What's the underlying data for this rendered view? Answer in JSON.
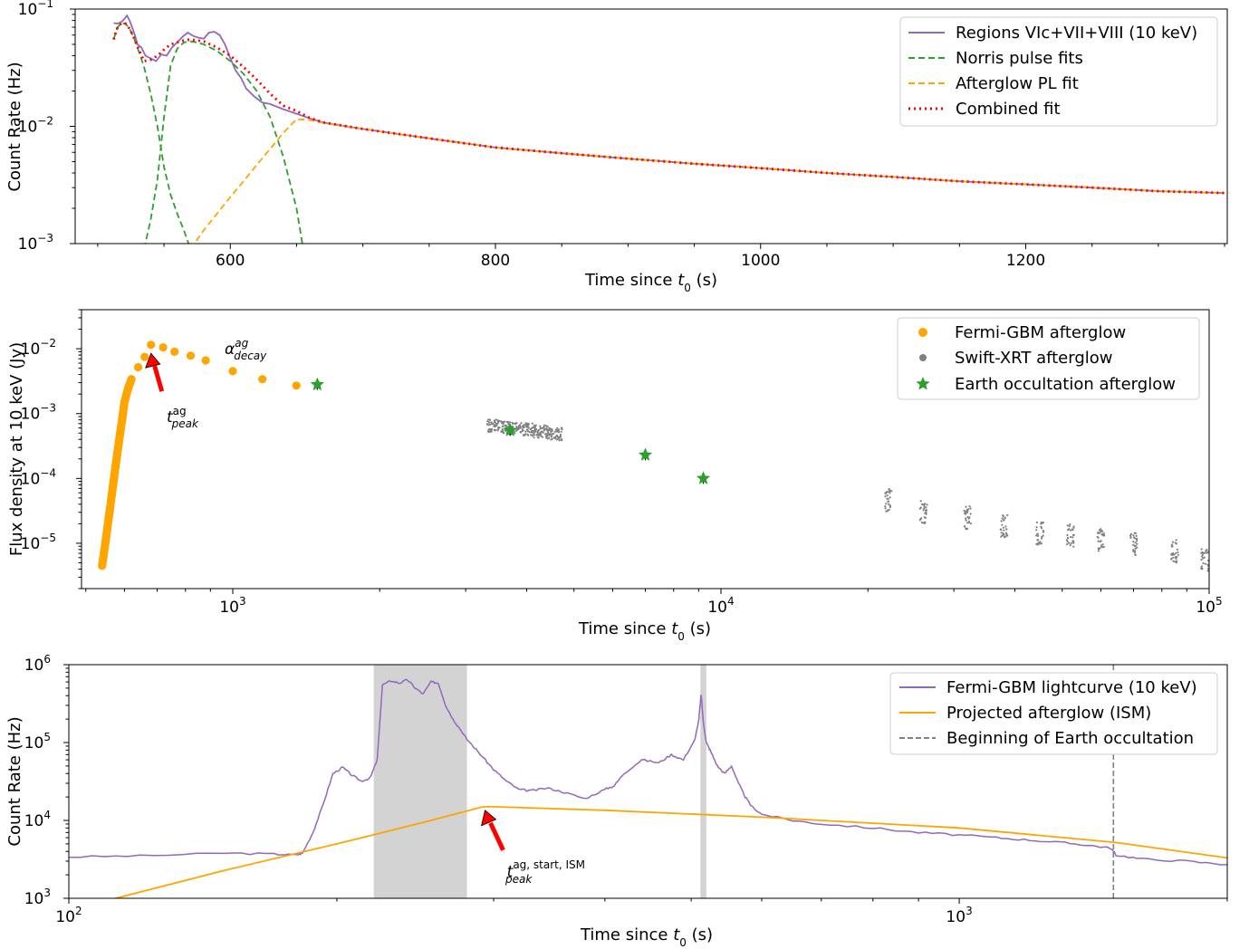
{
  "chart_data": [
    {
      "type": "line",
      "panel": "top",
      "xlabel": "Time since t0 (s)",
      "xlabel_main": "Time since ",
      "xlabel_var": "t",
      "xlabel_sub": "0",
      "xlabel_unit": " (s)",
      "ylabel": "Count Rate (Hz)",
      "xscale": "linear",
      "yscale": "log",
      "xlim": [
        483,
        1352
      ],
      "ylim": [
        0.001,
        0.1
      ],
      "xticks": [
        600,
        800,
        1000,
        1200
      ],
      "xtick_labels": [
        "600",
        "800",
        "1000",
        "1200"
      ],
      "ytick_labels": [
        {
          "base": "10",
          "exp": "−3"
        },
        {
          "base": "10",
          "exp": "−2"
        },
        {
          "base": "10",
          "exp": "−1"
        }
      ],
      "legend_position": "top-right",
      "legend": [
        "Regions VIc+VII+VIII (10 keV)",
        "Norris pulse fits",
        "Afterglow PL fit",
        "Combined fit"
      ],
      "colors": {
        "data": "#9467bd",
        "norris": "#2ca02c",
        "afterglow": "#ffa500",
        "combined": "#ff0000"
      },
      "series": [
        {
          "name": "Regions VIc+VII+VIII (10 keV)",
          "x": [
            512,
            515,
            518,
            520,
            522,
            524,
            526,
            528,
            530,
            533,
            536,
            540,
            544,
            548,
            552,
            556,
            560,
            564,
            568,
            572,
            576,
            580,
            584,
            588,
            592,
            596,
            600,
            604,
            608,
            612,
            618,
            624,
            630,
            640,
            650,
            660,
            670,
            680,
            700,
            750,
            800,
            850,
            900,
            950,
            1000,
            1050,
            1100,
            1150,
            1200,
            1250,
            1300,
            1350
          ],
          "y": [
            0.076,
            0.075,
            0.078,
            0.082,
            0.088,
            0.08,
            0.07,
            0.06,
            0.05,
            0.047,
            0.04,
            0.038,
            0.036,
            0.041,
            0.04,
            0.047,
            0.052,
            0.058,
            0.063,
            0.059,
            0.057,
            0.056,
            0.063,
            0.064,
            0.06,
            0.05,
            0.038,
            0.03,
            0.026,
            0.021,
            0.018,
            0.016,
            0.0155,
            0.014,
            0.0128,
            0.0117,
            0.0108,
            0.0103,
            0.0095,
            0.0079,
            0.0066,
            0.0059,
            0.0053,
            0.0048,
            0.0044,
            0.004,
            0.0037,
            0.0034,
            0.0032,
            0.003,
            0.0028,
            0.0027
          ]
        },
        {
          "name": "Norris pulse fits (pulse 1)",
          "x": [
            512,
            515,
            518,
            521,
            524,
            527,
            530,
            535,
            540,
            545,
            550,
            555,
            560,
            565,
            570
          ],
          "y": [
            0.055,
            0.07,
            0.076,
            0.075,
            0.068,
            0.058,
            0.047,
            0.032,
            0.019,
            0.01,
            0.0045,
            0.0026,
            0.0018,
            0.0013,
            0.0009
          ]
        },
        {
          "name": "Norris pulse fits (pulse 2)",
          "x": [
            535,
            540,
            545,
            550,
            555,
            560,
            565,
            570,
            575,
            580,
            590,
            600,
            610,
            620,
            630,
            640,
            650,
            655
          ],
          "y": [
            0.0009,
            0.0016,
            0.0035,
            0.012,
            0.033,
            0.046,
            0.052,
            0.053,
            0.052,
            0.05,
            0.044,
            0.036,
            0.028,
            0.02,
            0.012,
            0.0055,
            0.002,
            0.0009
          ]
        },
        {
          "name": "Afterglow PL fit",
          "x": [
            570,
            580,
            590,
            600,
            610,
            620,
            630,
            640,
            650,
            660,
            670,
            700,
            750,
            800,
            850,
            900,
            950,
            1000,
            1050,
            1100,
            1150,
            1200,
            1250,
            1300,
            1350
          ],
          "y": [
            0.0009,
            0.0013,
            0.0018,
            0.0025,
            0.0034,
            0.0047,
            0.0064,
            0.0088,
            0.0115,
            0.0113,
            0.0107,
            0.0095,
            0.0079,
            0.0066,
            0.0059,
            0.0053,
            0.0048,
            0.0044,
            0.004,
            0.0037,
            0.0034,
            0.0032,
            0.003,
            0.0028,
            0.0027
          ]
        },
        {
          "name": "Combined fit",
          "x": [
            512,
            515,
            518,
            521,
            524,
            527,
            530,
            535,
            540,
            545,
            550,
            555,
            560,
            565,
            570,
            580,
            590,
            600,
            610,
            620,
            630,
            640,
            650,
            660,
            670,
            700,
            750,
            800,
            850,
            900,
            950,
            1000,
            1050,
            1100,
            1150,
            1200,
            1250,
            1300,
            1350
          ],
          "y": [
            0.055,
            0.07,
            0.076,
            0.075,
            0.068,
            0.058,
            0.048,
            0.036,
            0.037,
            0.04,
            0.045,
            0.05,
            0.052,
            0.054,
            0.055,
            0.053,
            0.047,
            0.04,
            0.032,
            0.025,
            0.019,
            0.015,
            0.0135,
            0.0118,
            0.0108,
            0.0095,
            0.0079,
            0.0066,
            0.0059,
            0.0053,
            0.0048,
            0.0044,
            0.004,
            0.0037,
            0.0034,
            0.0032,
            0.003,
            0.0028,
            0.0027
          ]
        }
      ]
    },
    {
      "type": "scatter",
      "panel": "middle",
      "xlabel": "Time since t0 (s)",
      "xlabel_main": "Time since ",
      "xlabel_var": "t",
      "xlabel_sub": "0",
      "xlabel_unit": " (s)",
      "ylabel": "Flux density at 10 keV (Jy)",
      "xscale": "log",
      "yscale": "log",
      "xlim": [
        490,
        100000
      ],
      "ylim": [
        2e-06,
        0.04
      ],
      "xtick_labels": [
        {
          "base": "10",
          "exp": "3"
        },
        {
          "base": "10",
          "exp": "4"
        },
        {
          "base": "10",
          "exp": "5"
        }
      ],
      "ytick_labels": [
        {
          "base": "10",
          "exp": "−5"
        },
        {
          "base": "10",
          "exp": "−4"
        },
        {
          "base": "10",
          "exp": "−3"
        },
        {
          "base": "10",
          "exp": "−2"
        }
      ],
      "legend_position": "top-right",
      "legend": [
        "Fermi-GBM afterglow",
        "Swift-XRT afterglow",
        "Earth occultation afterglow"
      ],
      "colors": {
        "gbm": "#ffa500",
        "xrt": "#808080",
        "earth": "#2ca02c",
        "arrow": "#ff0000"
      },
      "annotations": {
        "decay": {
          "main": "α",
          "sup": "ag",
          "sub": "decay"
        },
        "peak": {
          "main": "t",
          "sup": "ag",
          "sub": "peak"
        }
      },
      "series": [
        {
          "name": "Fermi-GBM afterglow",
          "x": [
            540,
            545,
            550,
            555,
            560,
            565,
            570,
            575,
            580,
            585,
            590,
            595,
            600,
            610,
            620,
            640,
            660,
            680,
            720,
            760,
            820,
            880,
            1000,
            1150,
            1350
          ],
          "y": [
            4.5e-06,
            7.3e-06,
            1.2e-05,
            2e-05,
            3.3e-05,
            5.5e-05,
            9e-05,
            0.00015,
            0.00024,
            0.00038,
            0.0006,
            0.00095,
            0.0015,
            0.0024,
            0.0034,
            0.0052,
            0.0075,
            0.0115,
            0.0105,
            0.009,
            0.0078,
            0.0066,
            0.0045,
            0.0034,
            0.0027
          ]
        },
        {
          "name": "Swift-XRT afterglow",
          "x": [
            3450,
            3700,
            4000,
            4300,
            4550,
            22000,
            26000,
            32000,
            38000,
            45000,
            52000,
            60000,
            70000,
            85000,
            98000
          ],
          "y": [
            0.00065,
            0.0006,
            0.00057,
            0.00053,
            0.00048,
            4.5e-05,
            3e-05,
            2.5e-05,
            1.8e-05,
            1.4e-05,
            1.3e-05,
            1.1e-05,
            9.5e-06,
            7.5e-06,
            5.5e-06
          ]
        },
        {
          "name": "Earth occultation afterglow",
          "x": [
            1490,
            3700,
            7000,
            9200
          ],
          "y": [
            0.0028,
            0.00055,
            0.00023,
            0.0001
          ]
        }
      ]
    },
    {
      "type": "line",
      "panel": "bottom",
      "xlabel": "Time since t0 (s)",
      "xlabel_main": "Time since ",
      "xlabel_var": "t",
      "xlabel_sub": "0",
      "xlabel_unit": " (s)",
      "ylabel": "Count Rate (Hz)",
      "xscale": "log",
      "yscale": "log",
      "xlim": [
        100,
        2000
      ],
      "ylim": [
        1000,
        1000000
      ],
      "xtick_labels": [
        {
          "base": "10",
          "exp": "2"
        },
        {
          "base": "10",
          "exp": "3"
        }
      ],
      "ytick_labels": [
        {
          "base": "10",
          "exp": "3"
        },
        {
          "base": "10",
          "exp": "4"
        },
        {
          "base": "10",
          "exp": "5"
        },
        {
          "base": "10",
          "exp": "6"
        }
      ],
      "legend_position": "top-right",
      "legend": [
        "Fermi-GBM lightcurve (10 keV)",
        "Projected afterglow (ISM)",
        "Beginning of Earth occultation"
      ],
      "colors": {
        "lightcurve": "#9467bd",
        "afterglow": "#ffa500",
        "occultation": "#808080",
        "shade": "#d3d3d3",
        "arrow": "#ff0000"
      },
      "shaded_regions": [
        [
          220,
          280
        ],
        [
          512,
          520
        ]
      ],
      "earth_occultation_start": 1490,
      "annotations": {
        "peak": {
          "main": "t",
          "sup": "ag, start, ISM",
          "sub": "peak"
        }
      },
      "series": [
        {
          "name": "Fermi-GBM lightcurve (10 keV)",
          "x": [
            100,
            120,
            150,
            170,
            180,
            183,
            188,
            193,
            198,
            203,
            208,
            213,
            218,
            222,
            225,
            230,
            235,
            240,
            245,
            250,
            255,
            260,
            265,
            270,
            275,
            280,
            290,
            300,
            310,
            320,
            330,
            345,
            360,
            380,
            400,
            410,
            420,
            440,
            460,
            475,
            490,
            505,
            510,
            513,
            516,
            520,
            525,
            535,
            545,
            555,
            565,
            575,
            585,
            600,
            650,
            700,
            800,
            900,
            1000,
            1100,
            1200,
            1300,
            1400,
            1480,
            1500,
            1600,
            1800,
            2000
          ],
          "y": [
            3400,
            3500,
            3800,
            3700,
            3600,
            3800,
            7000,
            16000,
            40000,
            48000,
            38000,
            32000,
            35000,
            60000,
            550000,
            620000,
            580000,
            640000,
            500000,
            420000,
            600000,
            580000,
            300000,
            200000,
            150000,
            110000,
            70000,
            45000,
            32000,
            25000,
            24000,
            26000,
            23000,
            19000,
            25000,
            28000,
            40000,
            60000,
            55000,
            70000,
            60000,
            110000,
            200000,
            420000,
            180000,
            100000,
            80000,
            50000,
            40000,
            50000,
            30000,
            20000,
            15000,
            12000,
            10000,
            9000,
            8000,
            7000,
            6500,
            6000,
            5600,
            5200,
            4800,
            4400,
            3600,
            3200,
            3000,
            2700
          ]
        },
        {
          "name": "Projected afterglow (ISM)",
          "x": [
            100,
            150,
            200,
            250,
            292,
            300,
            400,
            600,
            1000,
            1500,
            2000
          ],
          "y": [
            700,
            2300,
            5000,
            9400,
            15000,
            15000,
            13500,
            11000,
            8000,
            5200,
            3300
          ]
        }
      ]
    }
  ]
}
